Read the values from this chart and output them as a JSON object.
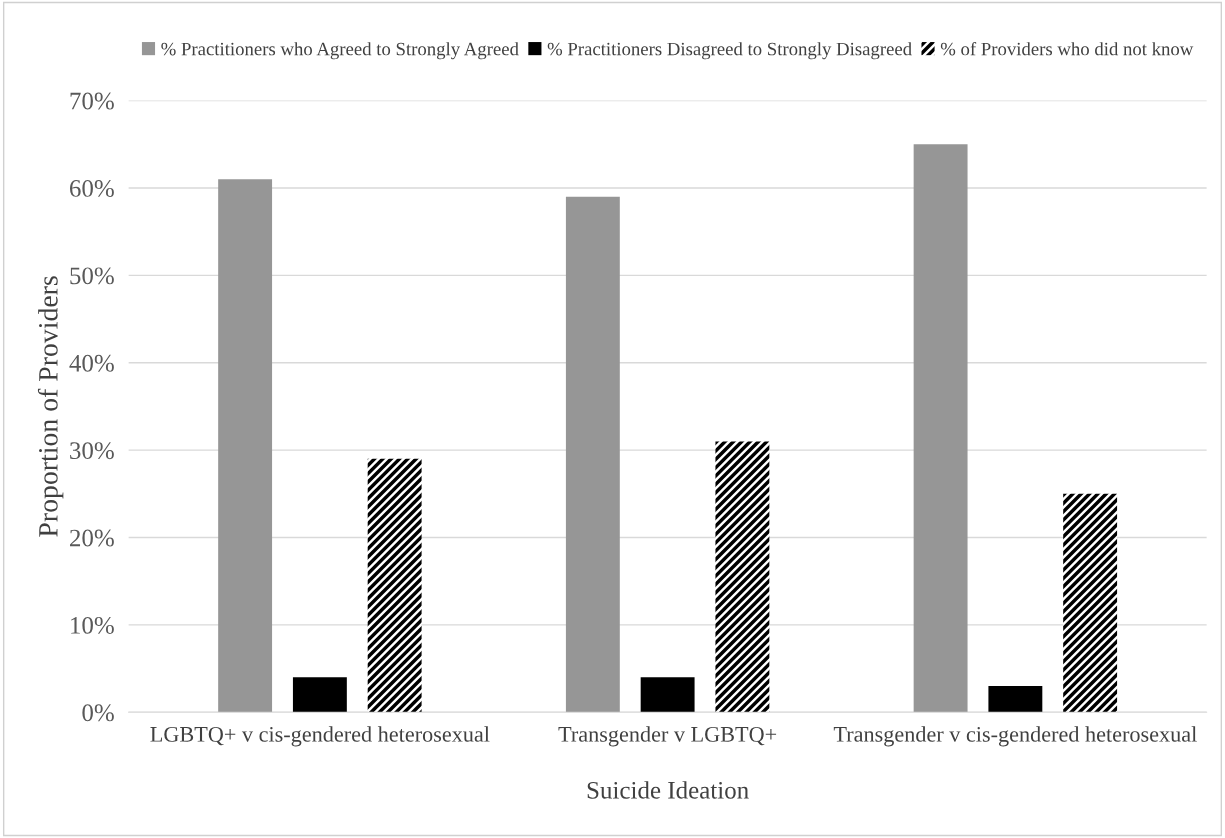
{
  "chart_data": {
    "type": "bar",
    "xlabel": "Suicide Ideation",
    "ylabel": "Proportion of Providers",
    "categories": [
      "LGBTQ+ v cis-gendered heterosexual",
      "Transgender v LGBTQ+",
      "Transgender v cis-gendered heterosexual"
    ],
    "series": [
      {
        "name": "% Practitioners who Agreed to Strongly Agreed",
        "color": "#969696",
        "values": [
          61,
          59,
          65
        ]
      },
      {
        "name": "% Practitioners Disagreed to Strongly Disagreed",
        "color": "#000000",
        "values": [
          4,
          4,
          3
        ]
      },
      {
        "name": "% of Providers who did not know",
        "color": "#000000",
        "values": [
          29,
          31,
          25
        ]
      }
    ],
    "ylim": [
      0,
      70
    ],
    "yticks": [
      {
        "value": 0,
        "label": "0%"
      },
      {
        "value": 10,
        "label": "10%"
      },
      {
        "value": 20,
        "label": "20%"
      },
      {
        "value": 30,
        "label": "30%"
      },
      {
        "value": 40,
        "label": "40%"
      },
      {
        "value": 50,
        "label": "50%"
      },
      {
        "value": 60,
        "label": "60%"
      },
      {
        "value": 70,
        "label": "70%"
      }
    ],
    "grid": "y",
    "legend": "top"
  }
}
